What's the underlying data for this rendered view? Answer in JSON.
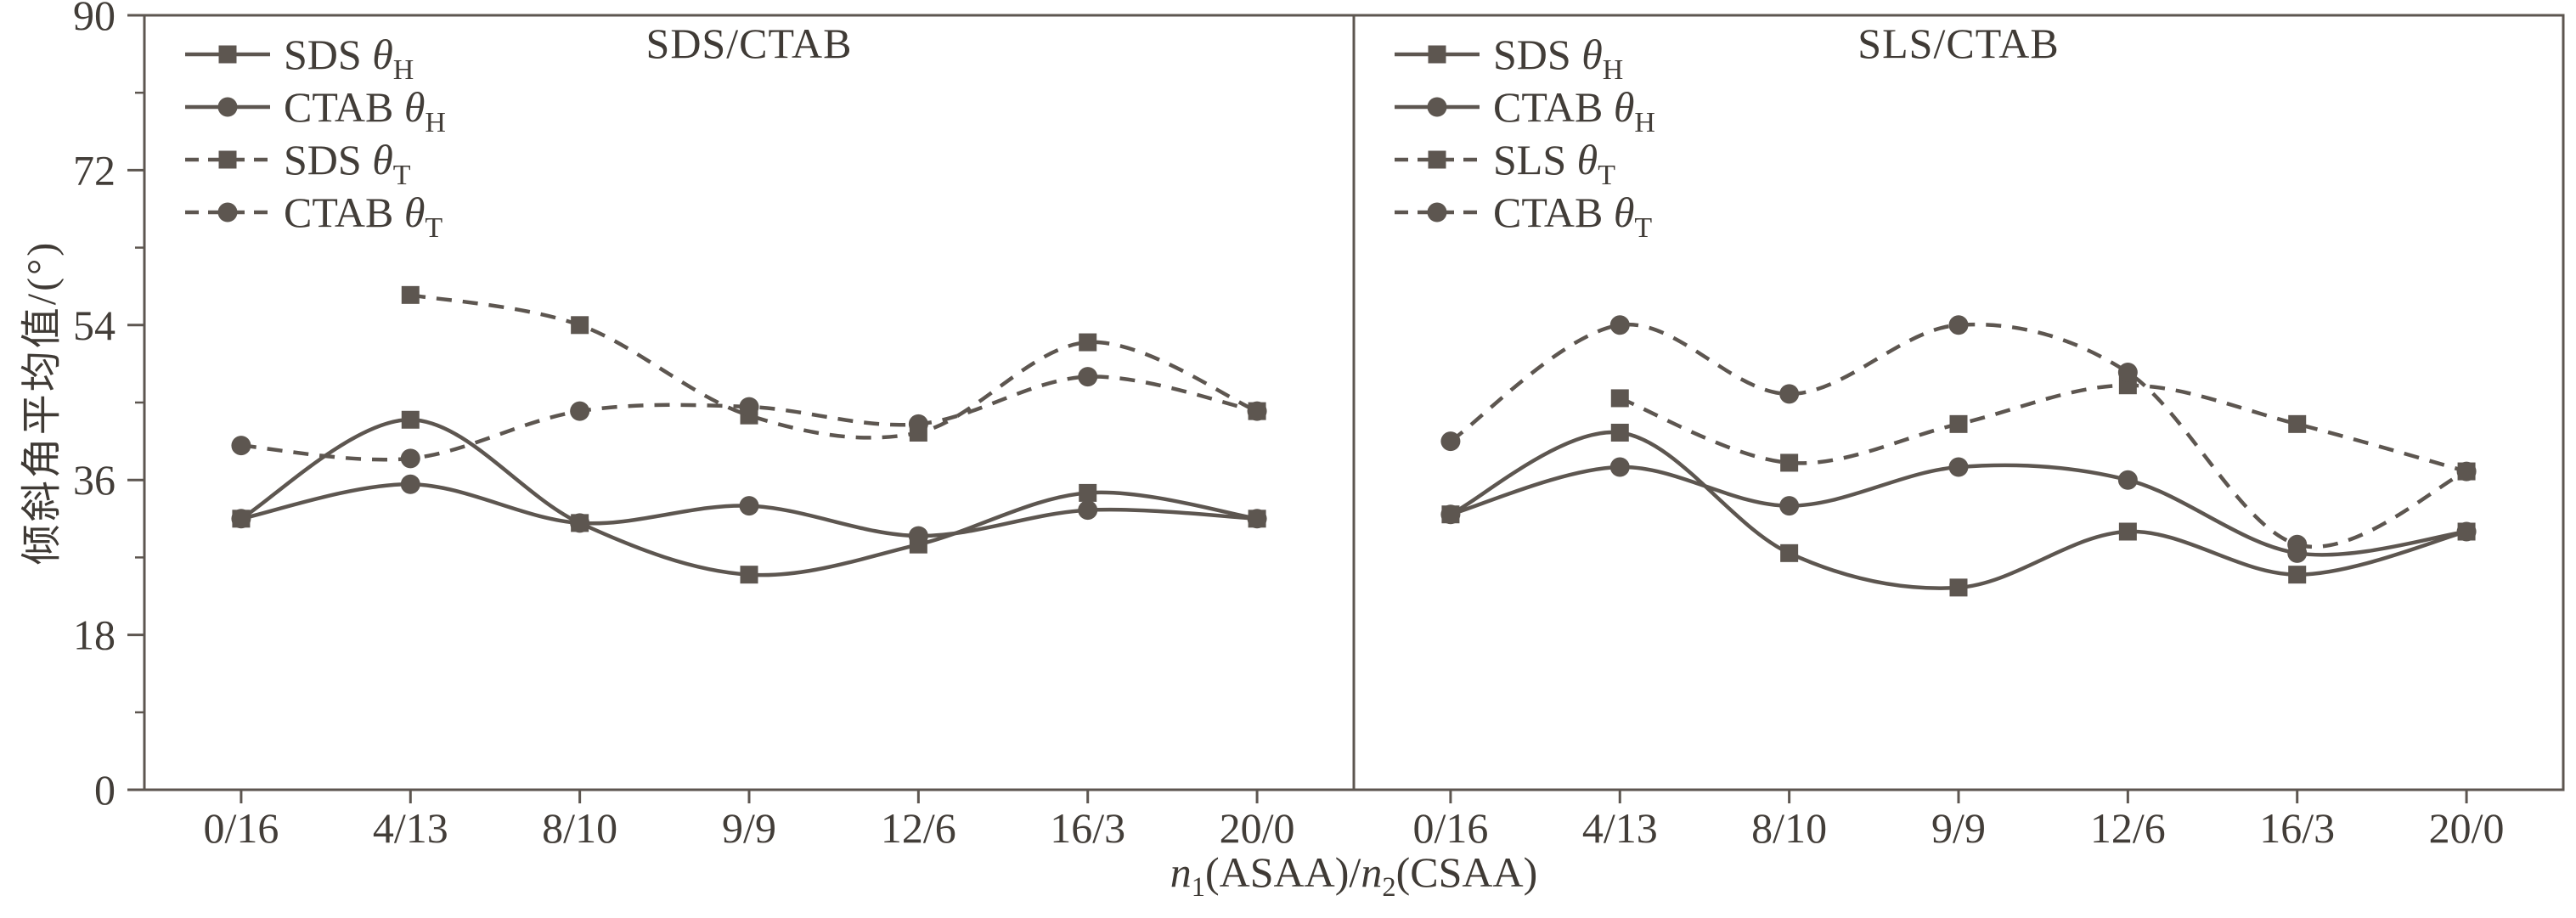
{
  "figure": {
    "ylabel": "倾斜角平均值/(°)",
    "xlabel": {
      "n1": "n",
      "s1": "1",
      "t1": "(ASAA)/",
      "n2": "n",
      "s2": "2",
      "t2": "(CSAA)"
    },
    "ink": "#5d5650",
    "text_color": "#423d38",
    "background": "#ffffff"
  },
  "axes": {
    "ylim": [
      0,
      90
    ],
    "y_ticks": [
      0,
      18,
      36,
      54,
      72,
      90
    ],
    "y_minor_step": 9,
    "grid": "off",
    "legend_position": "top-left-inside"
  },
  "chart_data": [
    {
      "type": "line",
      "title": "SDS/CTAB",
      "categories": [
        "0/16",
        "4/13",
        "8/10",
        "9/9",
        "12/6",
        "16/3",
        "20/0"
      ],
      "series": [
        {
          "label": "SDS",
          "symbol": "θ",
          "sub": "H",
          "marker": "square",
          "linestyle": "solid",
          "values": [
            31.5,
            43,
            31,
            25,
            28.5,
            34.5,
            31.5
          ]
        },
        {
          "label": "CTAB",
          "symbol": "θ",
          "sub": "H",
          "marker": "circle",
          "linestyle": "solid",
          "values": [
            31.5,
            35.5,
            31,
            33,
            29.5,
            32.5,
            31.5
          ]
        },
        {
          "label": "SDS",
          "symbol": "θ",
          "sub": "T",
          "marker": "square",
          "linestyle": "dashed",
          "values": [
            null,
            57.5,
            54,
            43.5,
            41.5,
            52,
            44
          ]
        },
        {
          "label": "CTAB",
          "symbol": "θ",
          "sub": "T",
          "marker": "circle",
          "linestyle": "dashed",
          "values": [
            40,
            38.5,
            44,
            44.5,
            42.5,
            48,
            44
          ]
        }
      ]
    },
    {
      "type": "line",
      "title": "SLS/CTAB",
      "categories": [
        "0/16",
        "4/13",
        "8/10",
        "9/9",
        "12/6",
        "16/3",
        "20/0"
      ],
      "series": [
        {
          "label": "SDS",
          "symbol": "θ",
          "sub": "H",
          "marker": "square",
          "linestyle": "solid",
          "values": [
            32,
            41.5,
            27.5,
            23.5,
            30,
            25,
            30
          ]
        },
        {
          "label": "CTAB",
          "symbol": "θ",
          "sub": "H",
          "marker": "circle",
          "linestyle": "solid",
          "values": [
            32,
            37.5,
            33,
            37.5,
            36,
            27.5,
            30
          ]
        },
        {
          "label": "SLS",
          "symbol": "θ",
          "sub": "T",
          "marker": "square",
          "linestyle": "dashed",
          "values": [
            null,
            45.5,
            38,
            42.5,
            47,
            42.5,
            37
          ]
        },
        {
          "label": "CTAB",
          "symbol": "θ",
          "sub": "T",
          "marker": "circle",
          "linestyle": "dashed",
          "values": [
            40.5,
            54,
            46,
            54,
            48.5,
            28.5,
            37
          ]
        }
      ]
    }
  ]
}
